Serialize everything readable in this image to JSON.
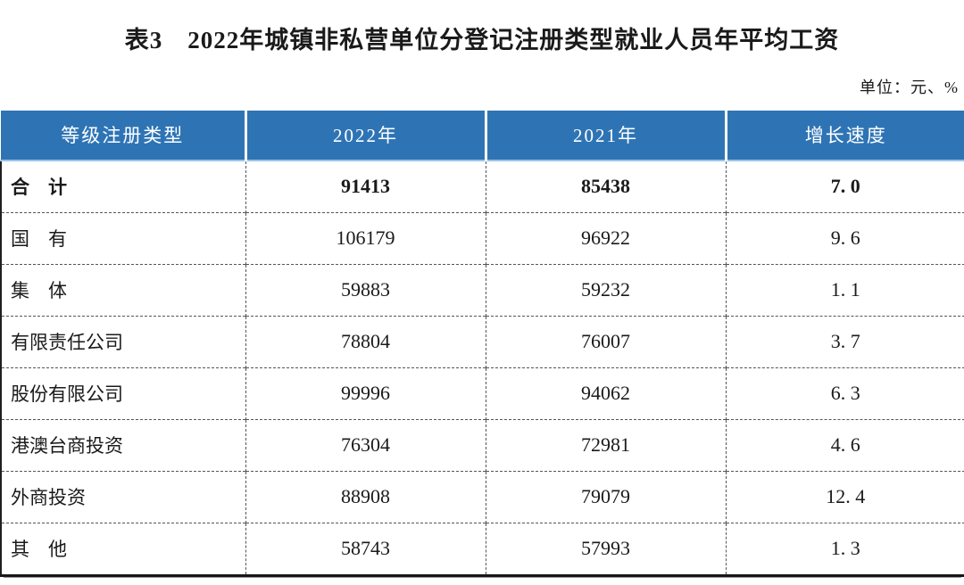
{
  "page": {
    "title": "表3　2022年城镇非私营单位分登记注册类型就业人员年平均工资",
    "unit_note": "单位：元、%"
  },
  "table": {
    "columns": [
      "等级注册类型",
      "2022年",
      "2021年",
      "增长速度"
    ],
    "rows": [
      {
        "category": "合　计",
        "y2022": "91413",
        "y2021": "85438",
        "growth": "7. 0",
        "bold": true
      },
      {
        "category": "国　有",
        "y2022": "106179",
        "y2021": "96922",
        "growth": "9. 6",
        "bold": false
      },
      {
        "category": "集　体",
        "y2022": "59883",
        "y2021": "59232",
        "growth": "1. 1",
        "bold": false
      },
      {
        "category": "有限责任公司",
        "y2022": "78804",
        "y2021": "76007",
        "growth": "3. 7",
        "bold": false
      },
      {
        "category": "股份有限公司",
        "y2022": "99996",
        "y2021": "94062",
        "growth": "6. 3",
        "bold": false
      },
      {
        "category": "港澳台商投资",
        "y2022": "76304",
        "y2021": "72981",
        "growth": "4. 6",
        "bold": false
      },
      {
        "category": "外商投资",
        "y2022": "88908",
        "y2021": "79079",
        "growth": "12. 4",
        "bold": false
      },
      {
        "category": "其　他",
        "y2022": "58743",
        "y2021": "57993",
        "growth": "1. 3",
        "bold": false
      }
    ],
    "colors": {
      "header_bg": "#2E74B5",
      "header_text": "#FFFFFF",
      "header_underline": "#9DC3E6",
      "body_text": "#1A1A1A"
    }
  }
}
